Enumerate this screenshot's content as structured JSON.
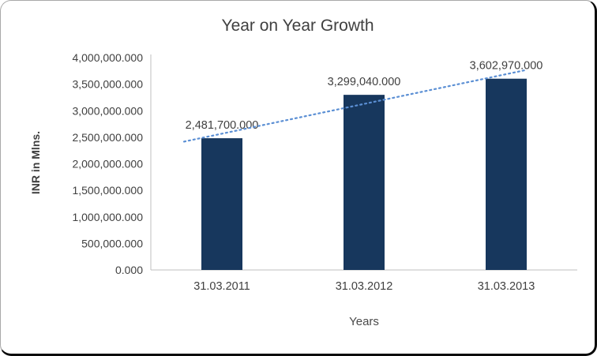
{
  "chart_data": {
    "type": "bar",
    "title": "Year on Year Growth",
    "xlabel": "Years",
    "ylabel": "INR in Mlns.",
    "categories": [
      "31.03.2011",
      "31.03.2012",
      "31.03.2013"
    ],
    "values": [
      2481700.0,
      3299040.0,
      3602970.0
    ],
    "data_labels": [
      "2,481,700.000",
      "3,299,040.000",
      "3,602,970.000"
    ],
    "ylim": [
      0,
      4000000
    ],
    "ytick_interval": 500000,
    "ytick_labels": [
      "0.000",
      "500,000.000",
      "1,000,000.000",
      "1,500,000.000",
      "2,000,000.000",
      "2,500,000.000",
      "3,000,000.000",
      "3,500,000.000",
      "4,000,000.000"
    ],
    "grid": false,
    "legend": "none",
    "trendline": true,
    "bar_color": "#17375D",
    "trendline_color": "#5B8FD4",
    "text_color": "#404040",
    "axis_line_color": "#BFBFBF"
  }
}
